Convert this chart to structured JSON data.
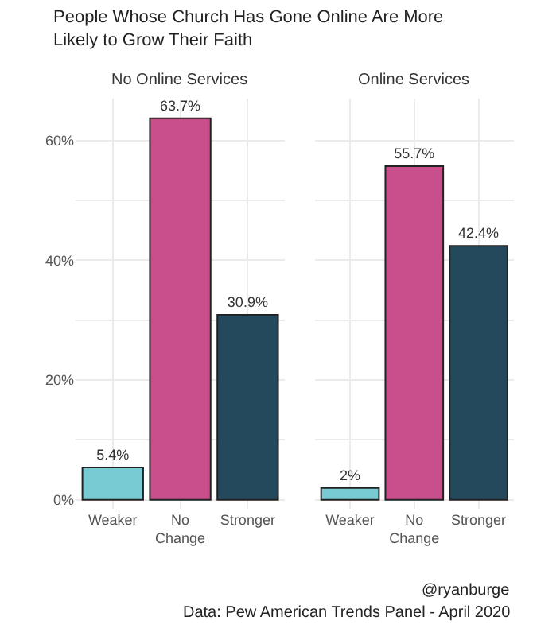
{
  "chart_data": [
    {
      "type": "bar",
      "title": "People Whose Church Has Gone Online Are More Likely to Grow Their Faith",
      "subtitle": "No Online Services",
      "categories": [
        "Weaker",
        "No Change",
        "Stronger"
      ],
      "values": [
        5.4,
        63.7,
        30.9
      ],
      "colors": [
        "#79cbd3",
        "#c84f8b",
        "#24495d"
      ],
      "value_labels": [
        "5.4%",
        "63.7%",
        "30.9%"
      ],
      "ylim": [
        -1.5,
        67
      ],
      "yticks": [
        {
          "value": 0,
          "label": "0%"
        },
        {
          "value": 10,
          "label": null
        },
        {
          "value": 20,
          "label": "20%"
        },
        {
          "value": 30,
          "label": null
        },
        {
          "value": 40,
          "label": "40%"
        },
        {
          "value": 50,
          "label": null
        },
        {
          "value": 60,
          "label": "60%"
        }
      ],
      "grid": true,
      "legend": false
    },
    {
      "type": "bar",
      "subtitle": "Online Services",
      "categories": [
        "Weaker",
        "No Change",
        "Stronger"
      ],
      "values": [
        2,
        55.7,
        42.4
      ],
      "colors": [
        "#79cbd3",
        "#c84f8b",
        "#24495d"
      ],
      "value_labels": [
        "2%",
        "55.7%",
        "42.4%"
      ],
      "ylim": [
        -1.5,
        67
      ],
      "yticks": [
        {
          "value": 0,
          "label": null
        },
        {
          "value": 10,
          "label": null
        },
        {
          "value": 20,
          "label": null
        },
        {
          "value": 30,
          "label": null
        },
        {
          "value": 40,
          "label": null
        },
        {
          "value": 50,
          "label": null
        },
        {
          "value": 60,
          "label": null
        }
      ],
      "tick_labels": "x",
      "grid": true,
      "legend": false,
      "annotations": [
        "@ryanburge",
        "Data: Pew American Trends Panel - April 2020"
      ]
    }
  ]
}
